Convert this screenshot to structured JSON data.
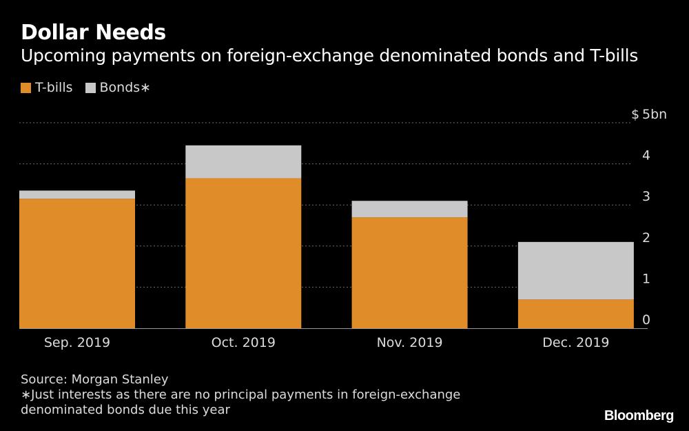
{
  "title": "Dollar Needs",
  "subtitle": "Upcoming payments on foreign-exchange denominated bonds and T-bills",
  "legend": [
    {
      "label": "T-bills",
      "color": "#e08c28"
    },
    {
      "label": "Bonds∗",
      "color": "#c8c8c8"
    }
  ],
  "footer": {
    "source": "Source: Morgan Stanley",
    "note_line1": "∗Just interests as there are no principal payments in foreign-exchange",
    "note_line2": "denominated bonds due this year"
  },
  "brand": "Bloomberg",
  "chart_data": {
    "type": "bar",
    "stacked": true,
    "categories": [
      "Sep. 2019",
      "Oct. 2019",
      "Nov. 2019",
      "Dec. 2019"
    ],
    "series": [
      {
        "name": "T-bills",
        "values": [
          3.15,
          3.65,
          2.7,
          0.7
        ],
        "color": "#e08c28"
      },
      {
        "name": "Bonds∗",
        "values": [
          0.2,
          0.8,
          0.4,
          1.4
        ],
        "color": "#c8c8c8"
      }
    ],
    "ylim": [
      0,
      5
    ],
    "yticks": [
      "0",
      "1",
      "2",
      "3",
      "4",
      "5bn"
    ],
    "yunit": "$",
    "grid": true,
    "axis_position": "right",
    "legend_position": "top-left"
  }
}
